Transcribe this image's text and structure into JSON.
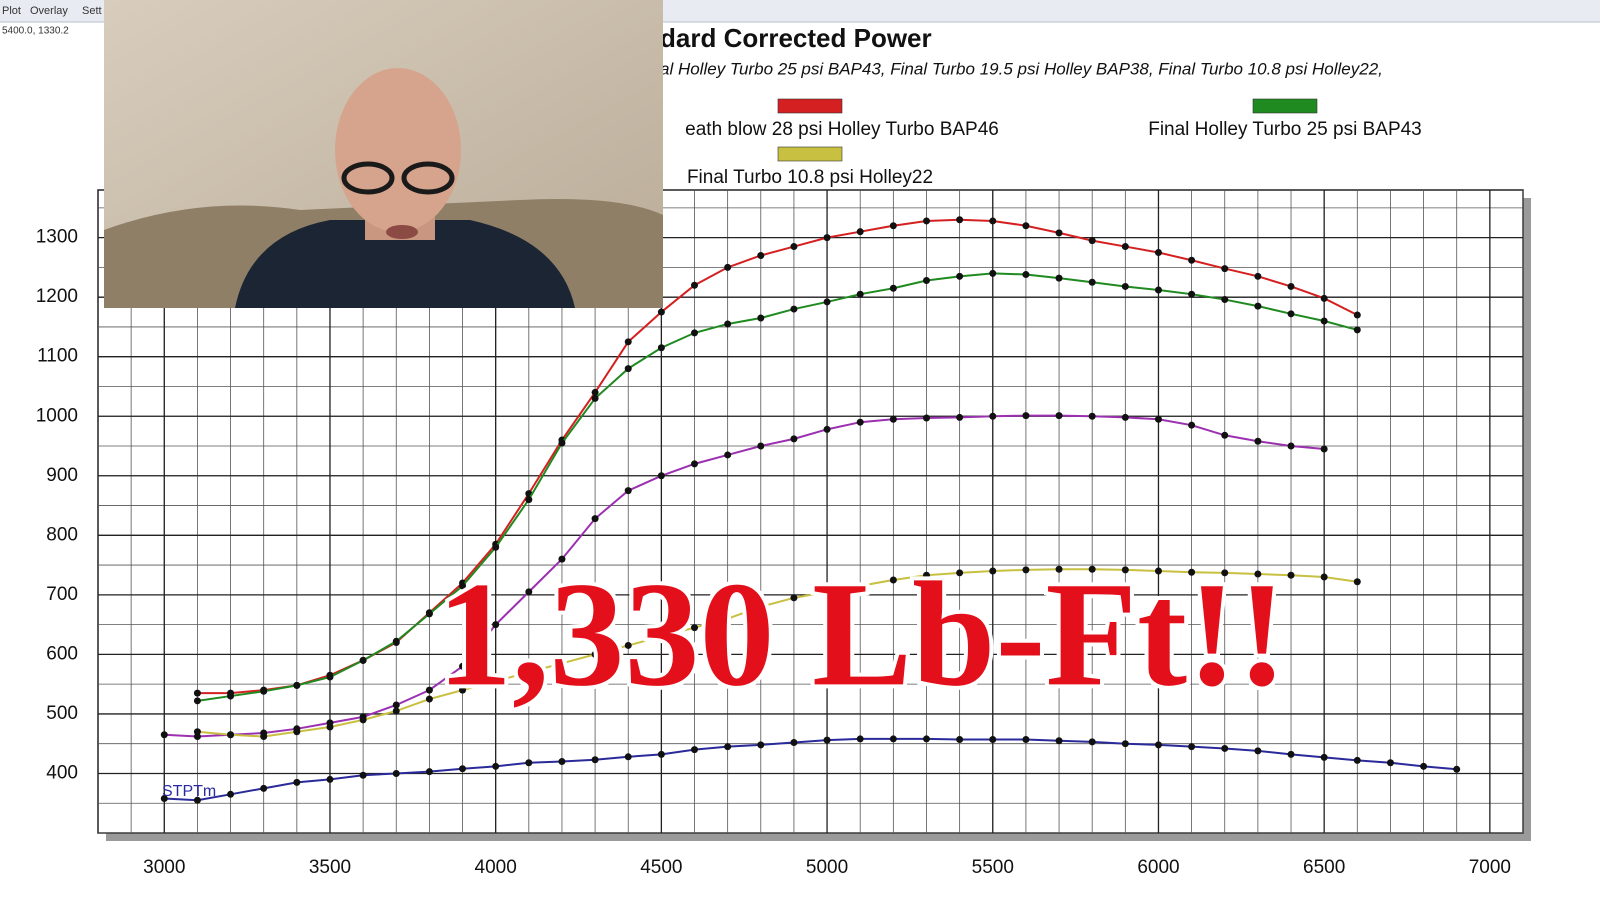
{
  "window": {
    "menu": [
      "Plot",
      "Overlay",
      "Sett"
    ],
    "cursor_readout": "5400.0, 1330.2"
  },
  "chart_data": {
    "type": "line",
    "title": "dard Corrected Power",
    "subtitle": "al Holley Turbo 25 psi BAP43, Final Turbo 19.5 psi Holley BAP38, Final Turbo 10.8 psi Holley22,",
    "annotations": [
      "STPTm",
      "1,330 Lb-Ft!!"
    ],
    "xlim": [
      2800,
      7100
    ],
    "ylim": [
      300,
      1380
    ],
    "xticks": [
      3000,
      3500,
      4000,
      4500,
      5000,
      5500,
      6000,
      6500,
      7000
    ],
    "yticks": [
      400,
      500,
      600,
      700,
      800,
      900,
      1000,
      1100,
      1200,
      1300
    ],
    "grid": true,
    "series": [
      {
        "name": "eath blow 28 psi Holley Turbo BAP46",
        "color": "#d42020",
        "x": [
          3100,
          3200,
          3300,
          3400,
          3500,
          3600,
          3700,
          3800,
          3900,
          4000,
          4100,
          4200,
          4300,
          4400,
          4500,
          4600,
          4700,
          4800,
          4900,
          5000,
          5100,
          5200,
          5300,
          5400,
          5500,
          5600,
          5700,
          5800,
          5900,
          6000,
          6100,
          6200,
          6300,
          6400,
          6500,
          6600
        ],
        "values": [
          535,
          535,
          540,
          548,
          565,
          590,
          620,
          670,
          720,
          785,
          870,
          960,
          1040,
          1125,
          1175,
          1220,
          1250,
          1270,
          1285,
          1300,
          1310,
          1320,
          1328,
          1330,
          1328,
          1320,
          1308,
          1295,
          1285,
          1275,
          1262,
          1248,
          1235,
          1218,
          1198,
          1170
        ]
      },
      {
        "name": "Final Holley Turbo 25 psi BAP43",
        "color": "#1f8a1f",
        "x": [
          3100,
          3200,
          3300,
          3400,
          3500,
          3600,
          3700,
          3800,
          3900,
          4000,
          4100,
          4200,
          4300,
          4400,
          4500,
          4600,
          4700,
          4800,
          4900,
          5000,
          5100,
          5200,
          5300,
          5400,
          5500,
          5600,
          5700,
          5800,
          5900,
          6000,
          6100,
          6200,
          6300,
          6400,
          6500,
          6600
        ],
        "values": [
          522,
          530,
          538,
          548,
          562,
          590,
          622,
          668,
          715,
          780,
          860,
          955,
          1030,
          1080,
          1115,
          1140,
          1155,
          1165,
          1180,
          1192,
          1205,
          1215,
          1228,
          1235,
          1240,
          1238,
          1232,
          1225,
          1218,
          1212,
          1205,
          1196,
          1185,
          1172,
          1160,
          1145
        ]
      },
      {
        "color": "#9b30b0",
        "x": [
          3000,
          3100,
          3200,
          3300,
          3400,
          3500,
          3600,
          3700,
          3800,
          3900,
          4000,
          4100,
          4200,
          4300,
          4400,
          4500,
          4600,
          4700,
          4800,
          4900,
          5000,
          5100,
          5200,
          5300,
          5400,
          5500,
          5600,
          5700,
          5800,
          5900,
          6000,
          6100,
          6200,
          6300,
          6400,
          6500
        ],
        "values": [
          465,
          462,
          465,
          468,
          475,
          485,
          495,
          515,
          540,
          580,
          650,
          705,
          760,
          828,
          875,
          900,
          920,
          935,
          950,
          962,
          978,
          990,
          995,
          997,
          998,
          1000,
          1001,
          1001,
          1000,
          998,
          995,
          985,
          968,
          958,
          950,
          945
        ]
      },
      {
        "name": "Final Turbo 10.8 psi Holley22",
        "color": "#c8c040",
        "x": [
          3100,
          3200,
          3300,
          3400,
          3500,
          3600,
          3700,
          3800,
          3900,
          4000,
          4100,
          4200,
          4300,
          4400,
          4500,
          4600,
          4700,
          4800,
          4900,
          5000,
          5100,
          5200,
          5300,
          5400,
          5500,
          5600,
          5700,
          5800,
          5900,
          6000,
          6100,
          6200,
          6300,
          6400,
          6500,
          6600
        ],
        "values": [
          470,
          465,
          462,
          470,
          478,
          490,
          505,
          525,
          540,
          555,
          570,
          585,
          600,
          615,
          630,
          645,
          660,
          680,
          695,
          705,
          715,
          725,
          733,
          737,
          740,
          742,
          743,
          743,
          742,
          740,
          738,
          737,
          735,
          733,
          730,
          722
        ]
      },
      {
        "color": "#2a2a9a",
        "x": [
          3000,
          3100,
          3200,
          3300,
          3400,
          3500,
          3600,
          3700,
          3800,
          3900,
          4000,
          4100,
          4200,
          4300,
          4400,
          4500,
          4600,
          4700,
          4800,
          4900,
          5000,
          5100,
          5200,
          5300,
          5400,
          5500,
          5600,
          5700,
          5800,
          5900,
          6000,
          6100,
          6200,
          6300,
          6400,
          6500,
          6600,
          6700,
          6800,
          6900
        ],
        "values": [
          358,
          355,
          365,
          375,
          385,
          390,
          397,
          400,
          403,
          408,
          412,
          418,
          420,
          423,
          428,
          432,
          440,
          445,
          448,
          452,
          456,
          458,
          458,
          458,
          457,
          457,
          457,
          455,
          453,
          450,
          448,
          445,
          442,
          438,
          432,
          427,
          422,
          418,
          412,
          407
        ]
      }
    ]
  }
}
